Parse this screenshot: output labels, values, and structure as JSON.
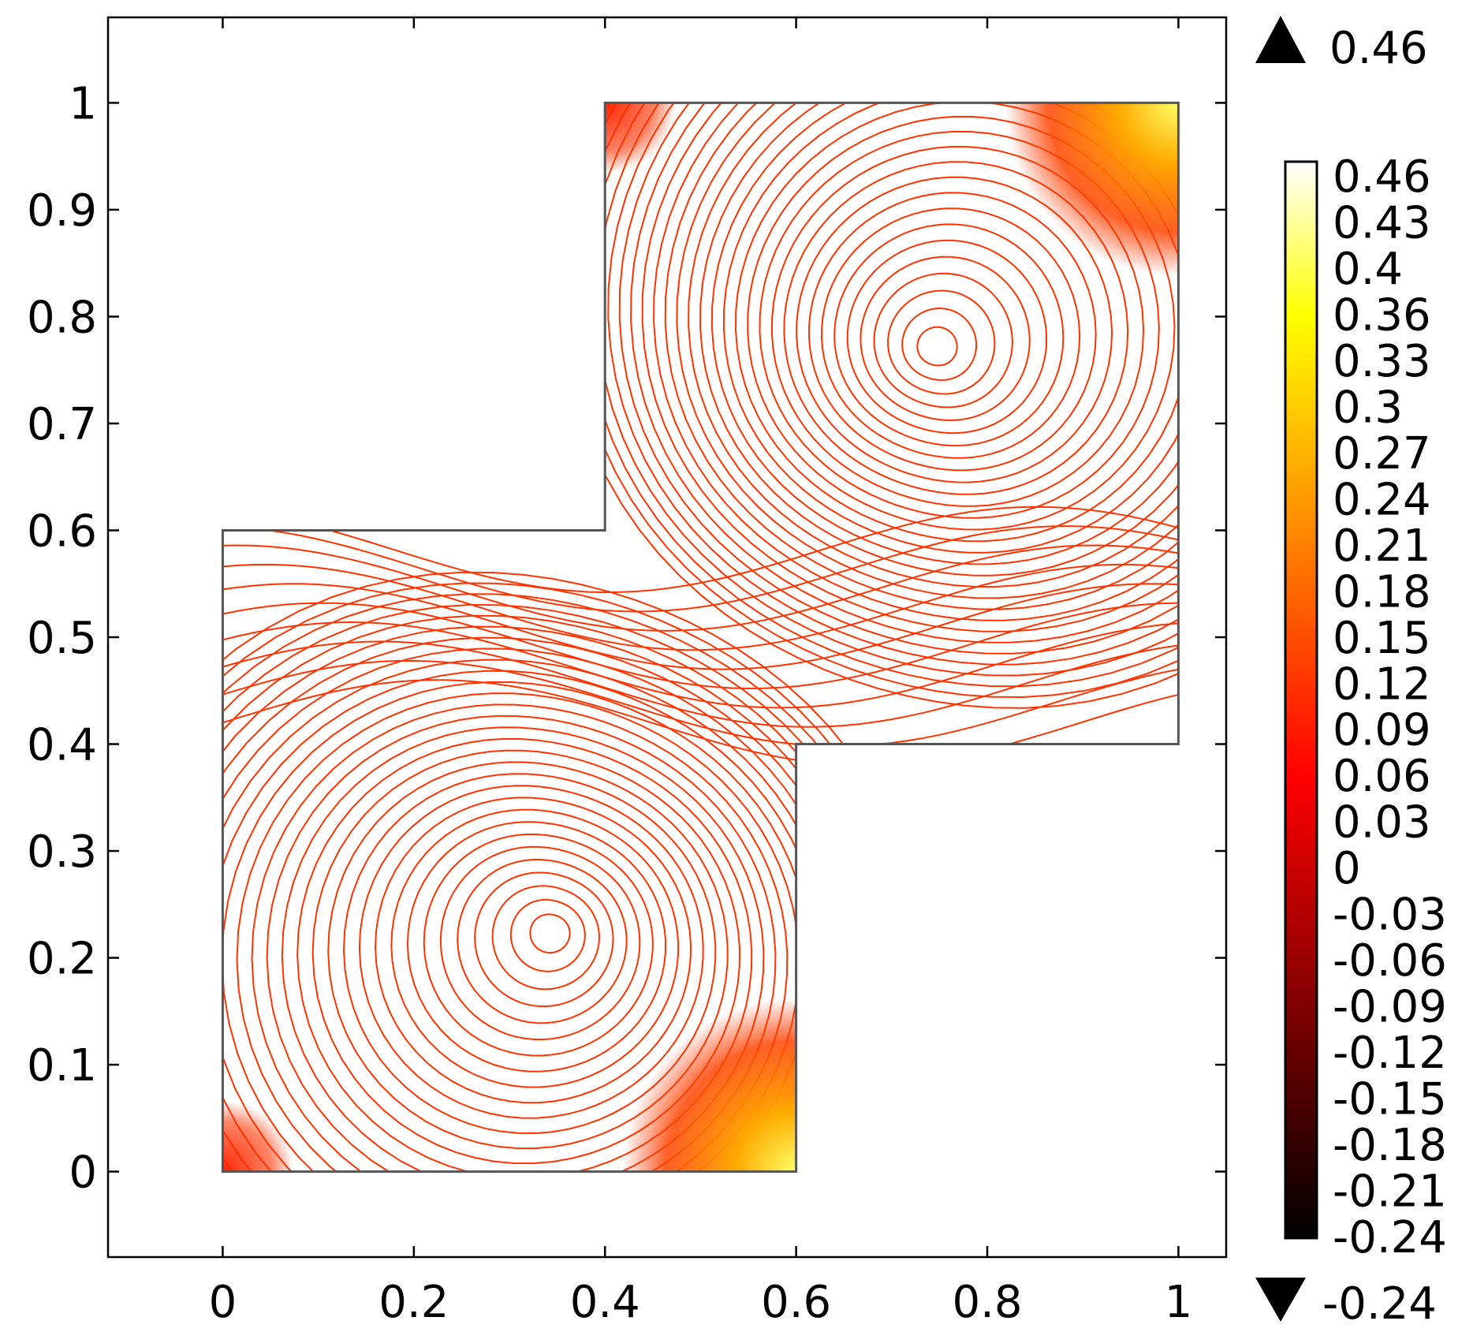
{
  "chart_data": {
    "type": "contour",
    "title": "",
    "xlabel": "",
    "ylabel": "",
    "xlim": [
      -0.12,
      1.05
    ],
    "ylim": [
      -0.08,
      1.08
    ],
    "x_ticks": [
      "0",
      "0.2",
      "0.4",
      "0.6",
      "0.8",
      "1"
    ],
    "y_ticks": [
      "0",
      "0.1",
      "0.2",
      "0.3",
      "0.4",
      "0.5",
      "0.6",
      "0.7",
      "0.8",
      "0.9",
      "1"
    ],
    "domain_outline": [
      [
        0,
        0
      ],
      [
        0.6,
        0
      ],
      [
        0.6,
        0.4
      ],
      [
        1,
        0.4
      ],
      [
        1,
        1
      ],
      [
        0.4,
        1
      ],
      [
        0.4,
        0.6
      ],
      [
        0,
        0.6
      ]
    ],
    "contour_color": "#ff3300",
    "lower_vortex_center": [
      0.345,
      0.225
    ],
    "upper_vortex_center": [
      0.745,
      0.77
    ],
    "hot_corners": [
      [
        0.6,
        0.0
      ],
      [
        1.0,
        1.0
      ]
    ],
    "colorbar": {
      "max_label": "0.46",
      "min_label": "-0.24",
      "ticks": [
        "0.46",
        "0.43",
        "0.4",
        "0.36",
        "0.33",
        "0.3",
        "0.27",
        "0.24",
        "0.21",
        "0.18",
        "0.15",
        "0.12",
        "0.09",
        "0.06",
        "0.03",
        "0",
        "-0.03",
        "-0.06",
        "-0.09",
        "-0.12",
        "-0.15",
        "-0.18",
        "-0.21",
        "-0.24"
      ],
      "colormap": [
        "#000000",
        "#550000",
        "#aa0000",
        "#ff0000",
        "#ff5500",
        "#ffaa00",
        "#ffff00",
        "#ffffff"
      ]
    }
  }
}
